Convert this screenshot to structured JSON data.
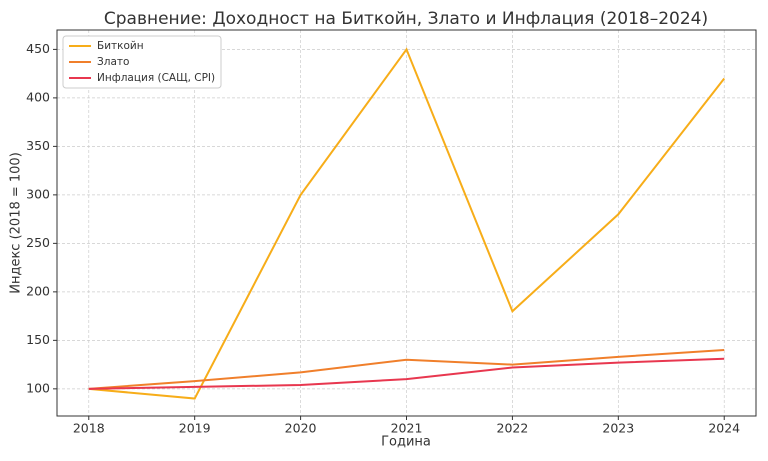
{
  "chart_data": {
    "type": "line",
    "title": "Сравнение: Доходност на Биткойн, Злато и Инфлация (2018–2024)",
    "x_label": "Година",
    "y_label": "Индекс (2018 = 100)",
    "x": [
      2018,
      2019,
      2020,
      2021,
      2022,
      2023,
      2024
    ],
    "series": [
      {
        "name": "Биткойн",
        "color": "#f7ad19",
        "values": [
          100,
          90,
          300,
          450,
          180,
          280,
          420
        ]
      },
      {
        "name": "Злато",
        "color": "#f07f2b",
        "values": [
          100,
          108,
          117,
          130,
          125,
          133,
          140
        ]
      },
      {
        "name": "Инфлация (САЩ, CPI)",
        "color": "#e8374f",
        "values": [
          100,
          102,
          104,
          110,
          122,
          127,
          131
        ]
      }
    ],
    "xlim": [
      2017.7,
      2024.3
    ],
    "ylim": [
      72,
      470
    ],
    "xticks": [
      2018,
      2019,
      2020,
      2021,
      2022,
      2023,
      2024
    ],
    "yticks": [
      100,
      150,
      200,
      250,
      300,
      350,
      400,
      450
    ],
    "grid": true,
    "legend": "upper-left"
  }
}
